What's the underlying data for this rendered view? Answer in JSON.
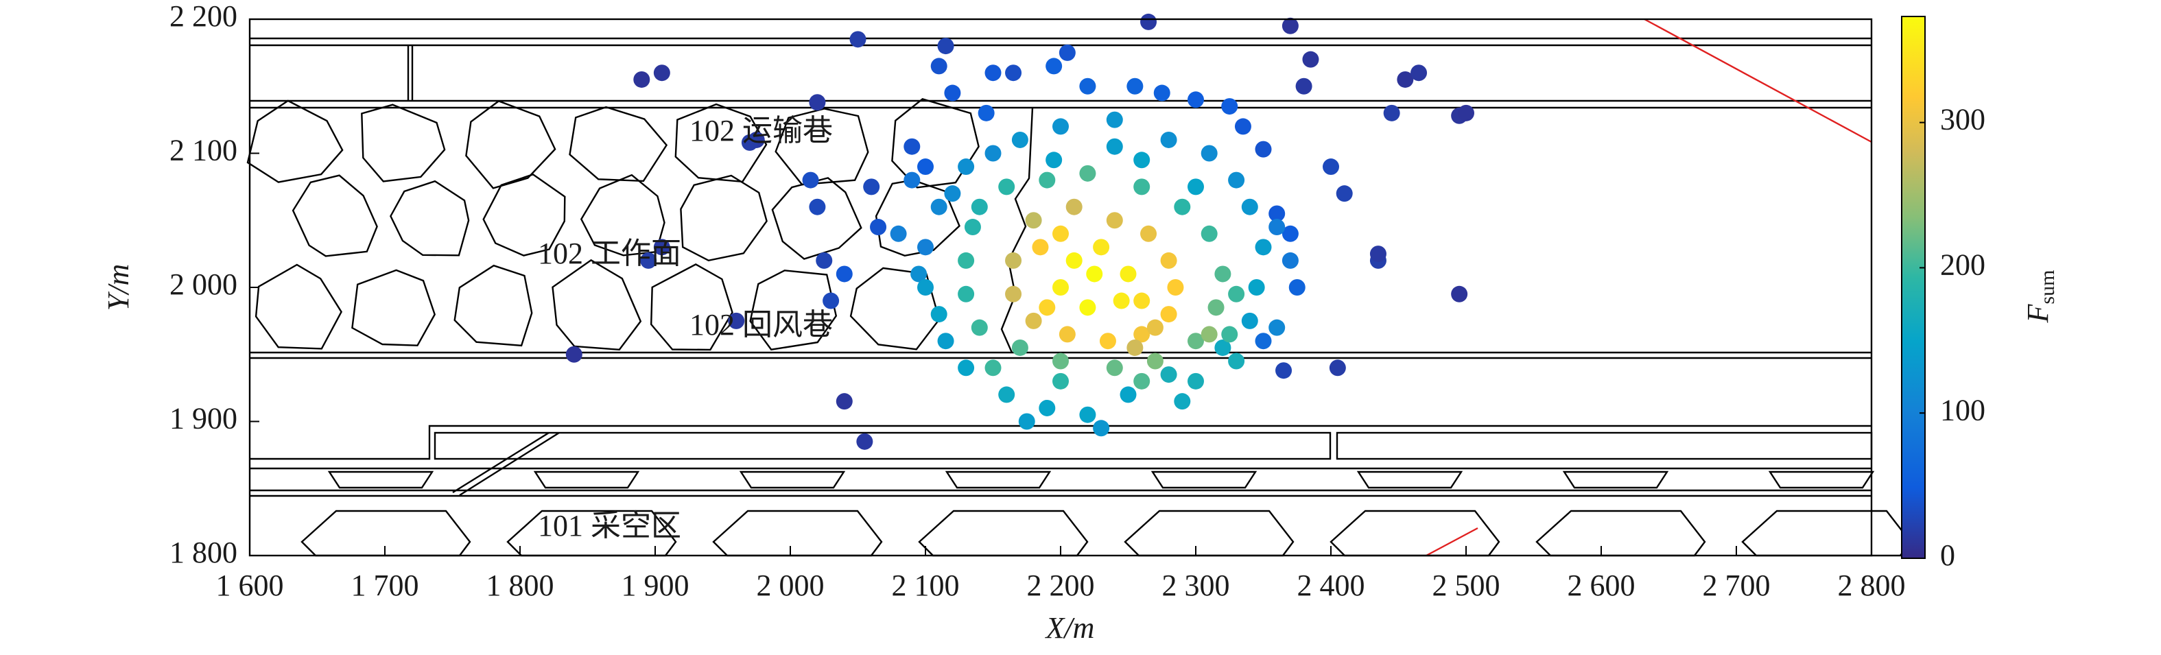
{
  "chart_data": {
    "type": "scatter",
    "xlabel": "X/m",
    "ylabel": "Y/m",
    "colorbar_label": "F",
    "colorbar_label_sub": "sum",
    "colormap": "parula",
    "annotations": [
      "102 运输巷",
      "102 工作面",
      "102 回风巷",
      "101 采空区"
    ],
    "xlim": [
      1600,
      2800
    ],
    "ylim": [
      1800,
      2200
    ],
    "clim": [
      0,
      373
    ],
    "xticks": [
      {
        "value": 1600,
        "label": "1 600"
      },
      {
        "value": 1700,
        "label": "1 700"
      },
      {
        "value": 1800,
        "label": "1 800"
      },
      {
        "value": 1900,
        "label": "1 900"
      },
      {
        "value": 2000,
        "label": "2 000"
      },
      {
        "value": 2100,
        "label": "2 100"
      },
      {
        "value": 2200,
        "label": "2 200"
      },
      {
        "value": 2300,
        "label": "2 300"
      },
      {
        "value": 2400,
        "label": "2 400"
      },
      {
        "value": 2500,
        "label": "2 500"
      },
      {
        "value": 2600,
        "label": "2 600"
      },
      {
        "value": 2700,
        "label": "2 700"
      },
      {
        "value": 2800,
        "label": "2 800"
      }
    ],
    "yticks": [
      {
        "value": 1800,
        "label": "1 800"
      },
      {
        "value": 1900,
        "label": "1 900"
      },
      {
        "value": 2000,
        "label": "2 000"
      },
      {
        "value": 2100,
        "label": "2 100"
      },
      {
        "value": 2200,
        "label": "2 200"
      }
    ],
    "cticks": [
      0,
      100,
      200,
      300
    ],
    "x": [
      1890,
      1905,
      2050,
      2265,
      2370,
      2380,
      2385,
      2455,
      2465,
      2495,
      2500,
      2445,
      1975,
      1970,
      2020,
      2115,
      1905,
      1895,
      1840,
      2040,
      2055,
      2495,
      2435,
      2435,
      2405,
      2365,
      2025,
      2030,
      1960,
      2020,
      2015,
      2060,
      2065,
      2040,
      2090,
      2100,
      2410,
      2400,
      2350,
      2335,
      2205,
      2195,
      2165,
      2220,
      2255,
      2275,
      2300,
      2325,
      2110,
      2120,
      2145,
      2360,
      2370,
      2375,
      2350,
      2150,
      2110,
      2100,
      2095,
      2120,
      2130,
      2150,
      2170,
      2200,
      2240,
      2280,
      2310,
      2330,
      2340,
      2350,
      2345,
      2340,
      2320,
      2280,
      2250,
      2220,
      2190,
      2160,
      2130,
      2115,
      2110,
      2100,
      2175,
      2230,
      2290,
      2300,
      2330,
      2360,
      2370,
      2360,
      2080,
      2090,
      2240,
      2195,
      2260,
      2300,
      2140,
      2160,
      2190,
      2220,
      2260,
      2290,
      2310,
      2320,
      2315,
      2300,
      2270,
      2240,
      2200,
      2170,
      2140,
      2130,
      2130,
      2135,
      2150,
      2200,
      2260,
      2310,
      2325,
      2330,
      2180,
      2210,
      2240,
      2265,
      2280,
      2285,
      2280,
      2260,
      2235,
      2205,
      2180,
      2165,
      2165,
      2200,
      2230,
      2250,
      2245,
      2220,
      2200,
      2210,
      2225,
      2260,
      2190,
      2185,
      2270,
      2255
    ],
    "values": [
      2155,
      2160,
      2185,
      2198,
      2195,
      2150,
      2170,
      2155,
      2160,
      2128,
      2130,
      2130,
      2110,
      2108,
      2138,
      2180,
      2030,
      2020,
      1950,
      1915,
      1885,
      1995,
      2020,
      2025,
      1940,
      1938,
      2020,
      1990,
      1975,
      2060,
      2080,
      2075,
      2045,
      2010,
      2105,
      2090,
      2070,
      2090,
      2103,
      2120,
      2175,
      2165,
      2160,
      2150,
      2150,
      2145,
      2140,
      2135,
      2165,
      2145,
      2130,
      2055,
      2040,
      2000,
      1960,
      2160,
      2060,
      2030,
      2010,
      2070,
      2090,
      2100,
      2110,
      2120,
      2125,
      2110,
      2100,
      2080,
      2060,
      2030,
      2000,
      1975,
      1955,
      1935,
      1920,
      1905,
      1910,
      1920,
      1940,
      1960,
      1980,
      2000,
      1900,
      1895,
      1915,
      1930,
      1945,
      1970,
      2020,
      2045,
      2040,
      2080,
      2105,
      2095,
      2095,
      2075,
      2060,
      2075,
      2080,
      2085,
      2075,
      2060,
      2040,
      2010,
      1985,
      1960,
      1945,
      1940,
      1945,
      1955,
      1970,
      1995,
      2020,
      2045,
      1940,
      1930,
      1930,
      1965,
      1965,
      1995,
      2050,
      2060,
      2050,
      2040,
      2020,
      2000,
      1980,
      1965,
      1960,
      1965,
      1975,
      1995,
      2020,
      2040,
      2030,
      2010,
      1990,
      1985,
      2000,
      2020,
      2010,
      1990,
      1985,
      2030,
      1970,
      1955
    ],
    "color_values": [
      10,
      12,
      20,
      15,
      10,
      15,
      12,
      10,
      14,
      12,
      10,
      20,
      15,
      18,
      15,
      25,
      15,
      20,
      10,
      12,
      15,
      10,
      20,
      15,
      18,
      25,
      25,
      30,
      15,
      30,
      35,
      30,
      40,
      45,
      40,
      50,
      25,
      30,
      40,
      45,
      40,
      55,
      35,
      60,
      60,
      55,
      50,
      50,
      40,
      45,
      55,
      45,
      50,
      60,
      70,
      45,
      110,
      100,
      120,
      115,
      120,
      115,
      130,
      125,
      130,
      120,
      115,
      120,
      130,
      140,
      150,
      140,
      160,
      170,
      150,
      150,
      150,
      160,
      150,
      140,
      150,
      140,
      140,
      130,
      160,
      170,
      170,
      110,
      90,
      95,
      100,
      85,
      140,
      145,
      150,
      150,
      180,
      190,
      200,
      210,
      200,
      190,
      200,
      210,
      220,
      220,
      230,
      220,
      220,
      210,
      200,
      190,
      195,
      185,
      200,
      190,
      210,
      240,
      200,
      200,
      270,
      280,
      290,
      300,
      310,
      320,
      320,
      310,
      320,
      310,
      290,
      280,
      275,
      330,
      350,
      360,
      355,
      370,
      360,
      365,
      372,
      340,
      330,
      320,
      300,
      280
    ]
  }
}
